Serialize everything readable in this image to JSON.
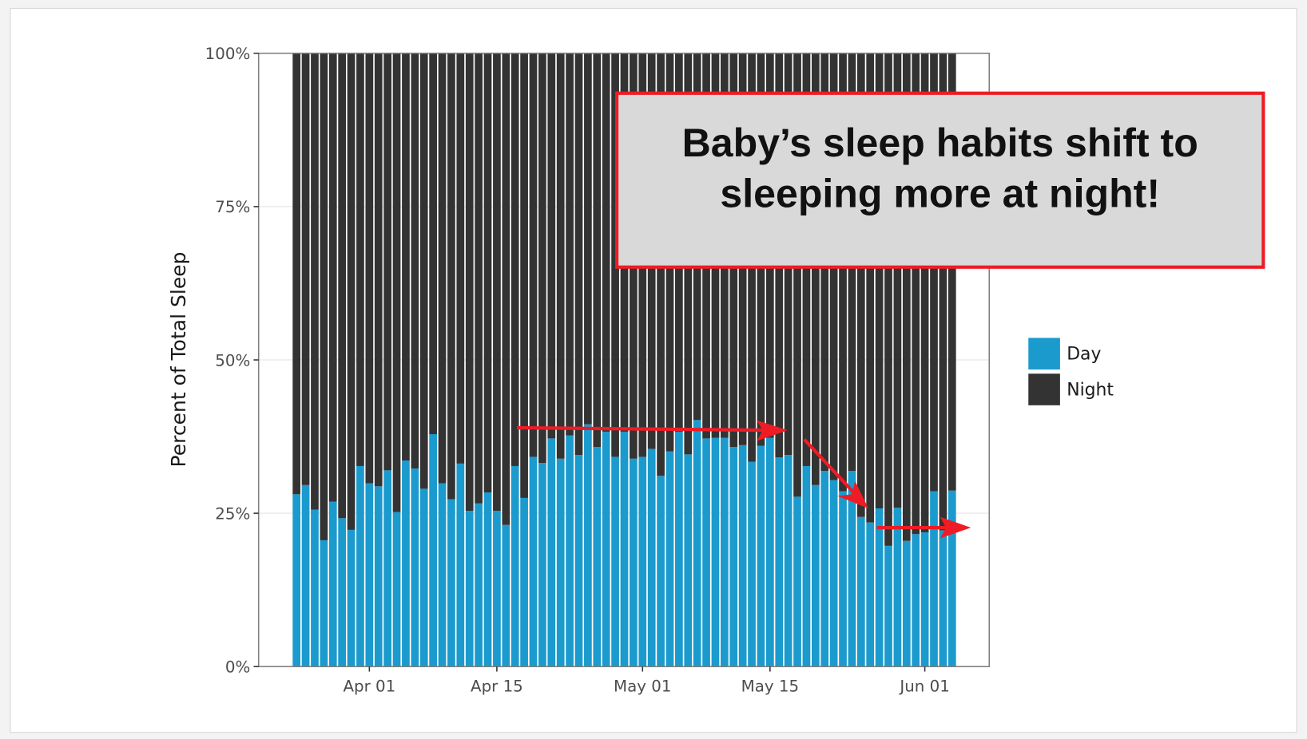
{
  "chart_data": {
    "type": "stacked_bar",
    "y_label": "Percent of Total Sleep",
    "annotation": [
      "Baby’s sleep habits shift to",
      "sleeping more at night!"
    ],
    "categories": [
      null,
      null,
      null,
      null,
      null,
      null,
      null,
      null,
      "Apr 01",
      null,
      null,
      null,
      null,
      null,
      null,
      null,
      null,
      null,
      null,
      null,
      null,
      null,
      "Apr 15",
      null,
      null,
      null,
      null,
      null,
      null,
      null,
      null,
      null,
      null,
      null,
      null,
      null,
      null,
      null,
      "May 01",
      null,
      null,
      null,
      null,
      null,
      null,
      null,
      null,
      null,
      null,
      null,
      null,
      null,
      "May 15",
      null,
      null,
      null,
      null,
      null,
      null,
      null,
      null,
      null,
      null,
      null,
      null,
      null,
      null,
      null,
      null,
      "Jun 01",
      null,
      null,
      null
    ],
    "series": [
      {
        "name": "Day",
        "color": "#1b9acd",
        "values": [
          28.1,
          29.6,
          25.6,
          20.6,
          26.9,
          24.2,
          22.3,
          32.7,
          29.9,
          29.4,
          32.0,
          25.2,
          33.6,
          32.3,
          29.0,
          37.9,
          29.9,
          27.3,
          33.1,
          25.4,
          26.6,
          28.4,
          25.4,
          23.1,
          32.7,
          27.5,
          34.2,
          33.2,
          37.2,
          33.9,
          37.7,
          34.5,
          39.5,
          35.8,
          38.3,
          34.2,
          38.3,
          33.9,
          34.2,
          35.5,
          31.1,
          35.1,
          38.3,
          34.6,
          40.2,
          37.2,
          37.3,
          37.3,
          35.8,
          36.1,
          33.4,
          36.0,
          37.3,
          34.1,
          34.5,
          27.7,
          32.7,
          29.6,
          31.9,
          30.4,
          28.6,
          31.9,
          24.4,
          23.5,
          25.8,
          19.7,
          25.9,
          20.5,
          21.6,
          21.9,
          28.6,
          22.2,
          28.7
        ]
      },
      {
        "name": "Night",
        "color": "#333333",
        "values": [
          71.9,
          70.4,
          74.4,
          79.4,
          73.1,
          75.8,
          77.7,
          67.3,
          70.1,
          70.6,
          68.0,
          74.8,
          66.4,
          67.7,
          71.0,
          62.1,
          70.1,
          72.7,
          66.9,
          74.6,
          73.4,
          71.6,
          74.6,
          76.9,
          67.3,
          72.5,
          65.8,
          66.8,
          62.8,
          66.1,
          62.3,
          65.5,
          60.5,
          64.2,
          61.7,
          65.8,
          61.7,
          66.1,
          65.8,
          64.5,
          68.9,
          64.9,
          61.7,
          65.4,
          59.8,
          62.8,
          62.7,
          62.7,
          64.2,
          63.9,
          66.6,
          64.0,
          62.7,
          65.9,
          65.5,
          72.3,
          67.3,
          70.4,
          68.1,
          69.6,
          71.4,
          68.1,
          75.6,
          76.5,
          74.2,
          80.3,
          74.1,
          79.5,
          78.4,
          78.1,
          71.4,
          77.8,
          71.3
        ]
      }
    ],
    "ylim": [
      0,
      100
    ],
    "yticks": [
      {
        "value": 0,
        "label": "0%"
      },
      {
        "value": 25,
        "label": "25%"
      },
      {
        "value": 50,
        "label": "50%"
      },
      {
        "value": 75,
        "label": "75%"
      },
      {
        "value": 100,
        "label": "100%"
      }
    ],
    "grid": true
  }
}
